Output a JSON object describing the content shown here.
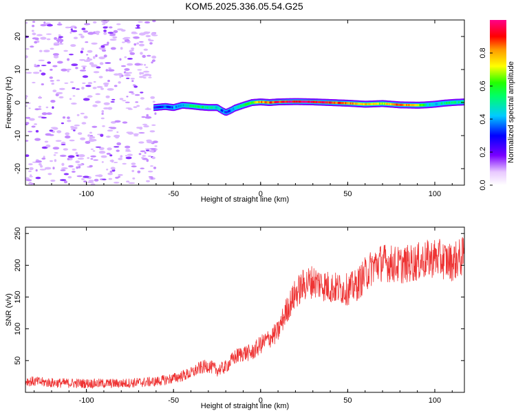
{
  "title": "KOM5.2025.336.05.54.G25",
  "chart_data": [
    {
      "type": "heatmap",
      "xlabel": "Height of straight line (km)",
      "ylabel": "Frequency (Hz)",
      "xlim": [
        -135,
        117
      ],
      "ylim": [
        -25,
        25
      ],
      "xticks": [
        -100,
        -50,
        0,
        50,
        100
      ],
      "yticks": [
        -20,
        -10,
        0,
        10,
        20
      ],
      "xticklabels": [
        "-100",
        "-50",
        "0",
        "50",
        "100"
      ],
      "yticklabels": [
        "-20",
        "-10",
        "0",
        "10",
        "20"
      ],
      "noise_region_x": [
        -135,
        -60
      ],
      "ridge": {
        "x": [
          -61,
          -55,
          -50,
          -45,
          -40,
          -35,
          -30,
          -25,
          -22,
          -20,
          -17,
          -15,
          -10,
          -5,
          0,
          5,
          10,
          20,
          30,
          40,
          50,
          60,
          70,
          80,
          90,
          95,
          100,
          105,
          110,
          117
        ],
        "y": [
          -1.5,
          -1.2,
          -1.5,
          -0.8,
          -1.0,
          -1.3,
          -1.5,
          -1.5,
          -2.5,
          -3.0,
          -2.3,
          -1.7,
          -0.8,
          0.0,
          0.2,
          0.0,
          0.2,
          0.3,
          0.2,
          0.0,
          -0.2,
          -0.5,
          -0.3,
          -0.7,
          -0.8,
          -0.7,
          -0.5,
          -0.2,
          0.0,
          0.2
        ],
        "amplitude": [
          0.25,
          0.3,
          0.35,
          0.4,
          0.5,
          0.55,
          0.5,
          0.45,
          0.35,
          0.3,
          0.35,
          0.45,
          0.55,
          0.65,
          0.8,
          0.85,
          0.9,
          0.95,
          0.95,
          0.9,
          0.8,
          0.75,
          0.7,
          0.85,
          0.75,
          0.5,
          0.45,
          0.5,
          0.55,
          0.5
        ]
      },
      "colorbar": {
        "label": "Normalized spectral amplitude",
        "range": [
          0,
          1
        ],
        "ticks": [
          0.0,
          0.2,
          0.4,
          0.6,
          0.8
        ],
        "ticklabels": [
          "0.0",
          "0.2",
          "0.4",
          "0.6",
          "0.8"
        ]
      }
    },
    {
      "type": "line",
      "xlabel": "Height of straight line (km)",
      "ylabel": "SNR (v/v)",
      "xlim": [
        -135,
        117
      ],
      "ylim": [
        0,
        260
      ],
      "xticks": [
        -100,
        -50,
        0,
        50,
        100
      ],
      "yticks": [
        50,
        100,
        150,
        200,
        250
      ],
      "xticklabels": [
        "-100",
        "-50",
        "0",
        "50",
        "100"
      ],
      "yticklabels": [
        "50",
        "100",
        "150",
        "200",
        "250"
      ],
      "series": [
        {
          "name": "SNR",
          "color": "#ee3333",
          "x": [
            -135,
            -120,
            -100,
            -80,
            -60,
            -50,
            -40,
            -35,
            -30,
            -25,
            -20,
            -15,
            -10,
            -5,
            0,
            5,
            10,
            12,
            15,
            20,
            25,
            30,
            40,
            50,
            55,
            60,
            65,
            70,
            80,
            90,
            100,
            110,
            117
          ],
          "y": [
            18,
            15,
            14,
            14,
            17,
            22,
            30,
            38,
            42,
            35,
            40,
            55,
            62,
            62,
            75,
            85,
            95,
            110,
            130,
            155,
            170,
            175,
            165,
            162,
            168,
            185,
            200,
            205,
            200,
            205,
            212,
            205,
            215
          ]
        }
      ]
    }
  ]
}
